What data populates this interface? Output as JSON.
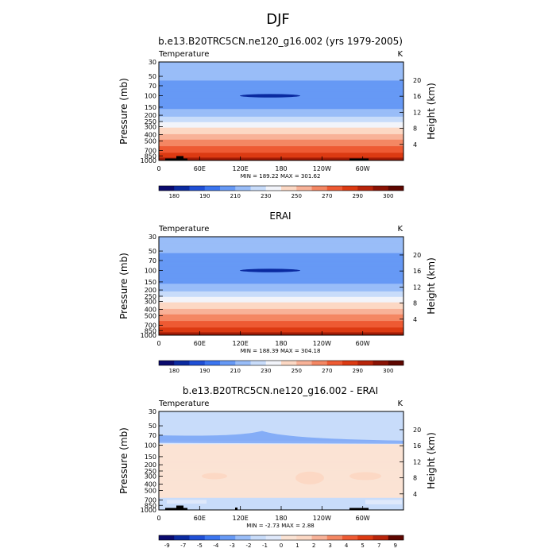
{
  "figure": {
    "title": "DJF",
    "yaxis_left_label": "Pressure (mb)",
    "yaxis_right_label": "Height (km)"
  },
  "chart_data": [
    {
      "type": "heatmap",
      "title": "b.e13.B20TRC5CN.ne120_g16.002 (yrs 1979-2005)",
      "variable": "Temperature",
      "units": "K",
      "x_tick_labels": [
        "0",
        "60E",
        "120E",
        "180",
        "120W",
        "60W"
      ],
      "y_ticks": [
        30,
        50,
        70,
        100,
        150,
        200,
        250,
        300,
        400,
        500,
        700,
        850,
        1000
      ],
      "height_ticks": [
        4,
        8,
        12,
        16,
        20
      ],
      "stats": "MIN = 189.22  MAX = 301.62",
      "min": 189.22,
      "max": 301.62,
      "colorbar_labels": [
        "180",
        "190",
        "210",
        "230",
        "250",
        "270",
        "290",
        "300"
      ],
      "colors": [
        "#0a0a6e",
        "#0a2aa0",
        "#1f4fd6",
        "#3b75f0",
        "#6699f5",
        "#99bdf8",
        "#c8dcfa",
        "#f2f4fa",
        "#fcd8c4",
        "#f8b298",
        "#f48763",
        "#ee5a33",
        "#dc3a12",
        "#b8240a",
        "#8a1204",
        "#5e0600"
      ],
      "levels": [
        180,
        185,
        190,
        200,
        210,
        220,
        230,
        240,
        250,
        260,
        270,
        280,
        290,
        295,
        300
      ],
      "profile_p": [
        30,
        50,
        70,
        85,
        100,
        125,
        150,
        175,
        200,
        225,
        250,
        300,
        350,
        400,
        450,
        500,
        550,
        600,
        650,
        700,
        750,
        800,
        850,
        900,
        950,
        1000
      ],
      "profile_t": [
        214,
        212,
        208,
        205,
        202,
        204,
        208,
        213,
        218,
        224,
        229,
        238,
        245,
        252,
        257,
        262,
        266,
        270,
        274,
        277,
        280,
        283,
        285,
        288,
        291,
        294
      ],
      "masked": true
    },
    {
      "type": "heatmap",
      "title": "ERAI",
      "variable": "Temperature",
      "units": "K",
      "x_tick_labels": [
        "0",
        "60E",
        "120E",
        "180",
        "120W",
        "60W"
      ],
      "y_ticks": [
        30,
        50,
        70,
        100,
        150,
        200,
        250,
        300,
        400,
        500,
        700,
        850,
        1000
      ],
      "height_ticks": [
        4,
        8,
        12,
        16,
        20
      ],
      "stats": "MIN = 188.39  MAX = 304.18",
      "min": 188.39,
      "max": 304.18,
      "colorbar_labels": [
        "180",
        "190",
        "210",
        "230",
        "250",
        "270",
        "290",
        "300"
      ],
      "colors": [
        "#0a0a6e",
        "#0a2aa0",
        "#1f4fd6",
        "#3b75f0",
        "#6699f5",
        "#99bdf8",
        "#c8dcfa",
        "#f2f4fa",
        "#fcd8c4",
        "#f8b298",
        "#f48763",
        "#ee5a33",
        "#dc3a12",
        "#b8240a",
        "#8a1204",
        "#5e0600"
      ],
      "levels": [
        180,
        185,
        190,
        200,
        210,
        220,
        230,
        240,
        250,
        260,
        270,
        280,
        290,
        295,
        300
      ],
      "profile_p": [
        30,
        50,
        70,
        85,
        100,
        125,
        150,
        175,
        200,
        225,
        250,
        300,
        350,
        400,
        450,
        500,
        550,
        600,
        650,
        700,
        750,
        800,
        850,
        900,
        950,
        1000
      ],
      "profile_t": [
        213,
        211,
        207,
        204,
        201,
        204,
        208,
        213,
        218,
        224,
        229,
        238,
        245,
        252,
        257,
        262,
        266,
        270,
        274,
        277,
        280,
        283,
        286,
        289,
        292,
        296
      ],
      "masked": false
    },
    {
      "type": "heatmap",
      "title": "b.e13.B20TRC5CN.ne120_g16.002 - ERAI",
      "variable": "Temperature",
      "units": "K",
      "x_tick_labels": [
        "0",
        "60E",
        "120E",
        "180",
        "120W",
        "60W"
      ],
      "y_ticks": [
        30,
        50,
        70,
        100,
        150,
        200,
        250,
        300,
        400,
        500,
        700,
        850,
        1000
      ],
      "height_ticks": [
        4,
        8,
        12,
        16,
        20
      ],
      "stats": "MIN =  -2.73  MAX =   2.88",
      "min": -2.73,
      "max": 2.88,
      "colorbar_labels": [
        "-9",
        "-7",
        "-5",
        "-4",
        "-3",
        "-2",
        "-1",
        "0",
        "1",
        "2",
        "3",
        "4",
        "5",
        "7",
        "9"
      ],
      "colors": [
        "#0a0a6e",
        "#0a2aa0",
        "#1f4fd6",
        "#3b75f0",
        "#6699f5",
        "#99bdf8",
        "#c8dcfa",
        "#dfe9fb",
        "#fbe3d4",
        "#fcd8c4",
        "#f8b298",
        "#f48763",
        "#ee5a33",
        "#dc3a12",
        "#b8240a",
        "#5e0600"
      ],
      "levels": [
        -9,
        -7,
        -5,
        -4,
        -3,
        -2,
        -1,
        0,
        1,
        2,
        3,
        4,
        5,
        7,
        9
      ],
      "profile_p": [
        30,
        70,
        85,
        100,
        150,
        200,
        300,
        400,
        500,
        650,
        700,
        850,
        1000
      ],
      "profile_t": [
        -1.5,
        -1.5,
        -1.1,
        0.4,
        0.5,
        0.5,
        0.6,
        0.5,
        0.5,
        0.3,
        -0.4,
        -0.6,
        -0.4
      ],
      "masked": true
    }
  ]
}
